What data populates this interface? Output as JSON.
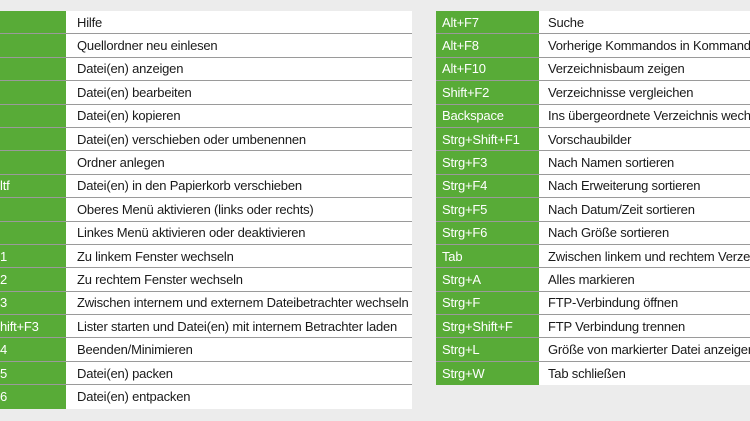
{
  "colors": {
    "key_bg": "#58ab37",
    "key_text": "#ffffff",
    "page_bg": "#ececec"
  },
  "left_table": {
    "rows": [
      {
        "key": "",
        "desc": "Hilfe"
      },
      {
        "key": "",
        "desc": "Quellordner neu einlesen"
      },
      {
        "key": "",
        "desc": "Datei(en) anzeigen"
      },
      {
        "key": "",
        "desc": "Datei(en) bearbeiten"
      },
      {
        "key": "",
        "desc": "Datei(en) kopieren"
      },
      {
        "key": "",
        "desc": "Datei(en) verschieben oder umbenennen"
      },
      {
        "key": "",
        "desc": "Ordner anlegen"
      },
      {
        "key": "ltf",
        "desc": "Datei(en) in den Papierkorb verschieben"
      },
      {
        "key": "",
        "desc": "Oberes Menü aktivieren (links oder rechts)"
      },
      {
        "key": "",
        "desc": "Linkes Menü aktivieren oder deaktivieren"
      },
      {
        "key": "1",
        "desc": "Zu linkem Fenster wechseln"
      },
      {
        "key": "2",
        "desc": "Zu rechtem Fenster wechseln"
      },
      {
        "key": "3",
        "desc": "Zwischen internem und externem Dateibetrachter wechseln"
      },
      {
        "key": "hift+F3",
        "desc": "Lister starten und Datei(en) mit internem Betrachter laden"
      },
      {
        "key": "4",
        "desc": "Beenden/Minimieren"
      },
      {
        "key": "5",
        "desc": "Datei(en) packen"
      },
      {
        "key": "6",
        "desc": "Datei(en) entpacken"
      }
    ]
  },
  "right_table": {
    "rows": [
      {
        "key": "Alt+F7",
        "desc": "Suche"
      },
      {
        "key": "Alt+F8",
        "desc": "Vorherige Kommandos in Kommandoz"
      },
      {
        "key": "Alt+F10",
        "desc": "Verzeichnisbaum zeigen"
      },
      {
        "key": "Shift+F2",
        "desc": "Verzeichnisse vergleichen"
      },
      {
        "key": "Backspace",
        "desc": "Ins übergeordnete Verzeichnis wechse"
      },
      {
        "key": "Strg+Shift+F1",
        "desc": "Vorschaubilder"
      },
      {
        "key": "Strg+F3",
        "desc": "Nach Namen sortieren"
      },
      {
        "key": "Strg+F4",
        "desc": "Nach Erweiterung sortieren"
      },
      {
        "key": "Strg+F5",
        "desc": "Nach Datum/Zeit sortieren"
      },
      {
        "key": "Strg+F6",
        "desc": "Nach Größe sortieren"
      },
      {
        "key": "Tab",
        "desc": "Zwischen linkem und rechtem Verzeich"
      },
      {
        "key": "Strg+A",
        "desc": "Alles markieren"
      },
      {
        "key": "Strg+F",
        "desc": "FTP-Verbindung öffnen"
      },
      {
        "key": "Strg+Shift+F",
        "desc": "FTP Verbindung trennen"
      },
      {
        "key": "Strg+L",
        "desc": "Größe von markierter Datei anzeigen"
      },
      {
        "key": "Strg+W",
        "desc": "Tab schließen"
      }
    ]
  }
}
